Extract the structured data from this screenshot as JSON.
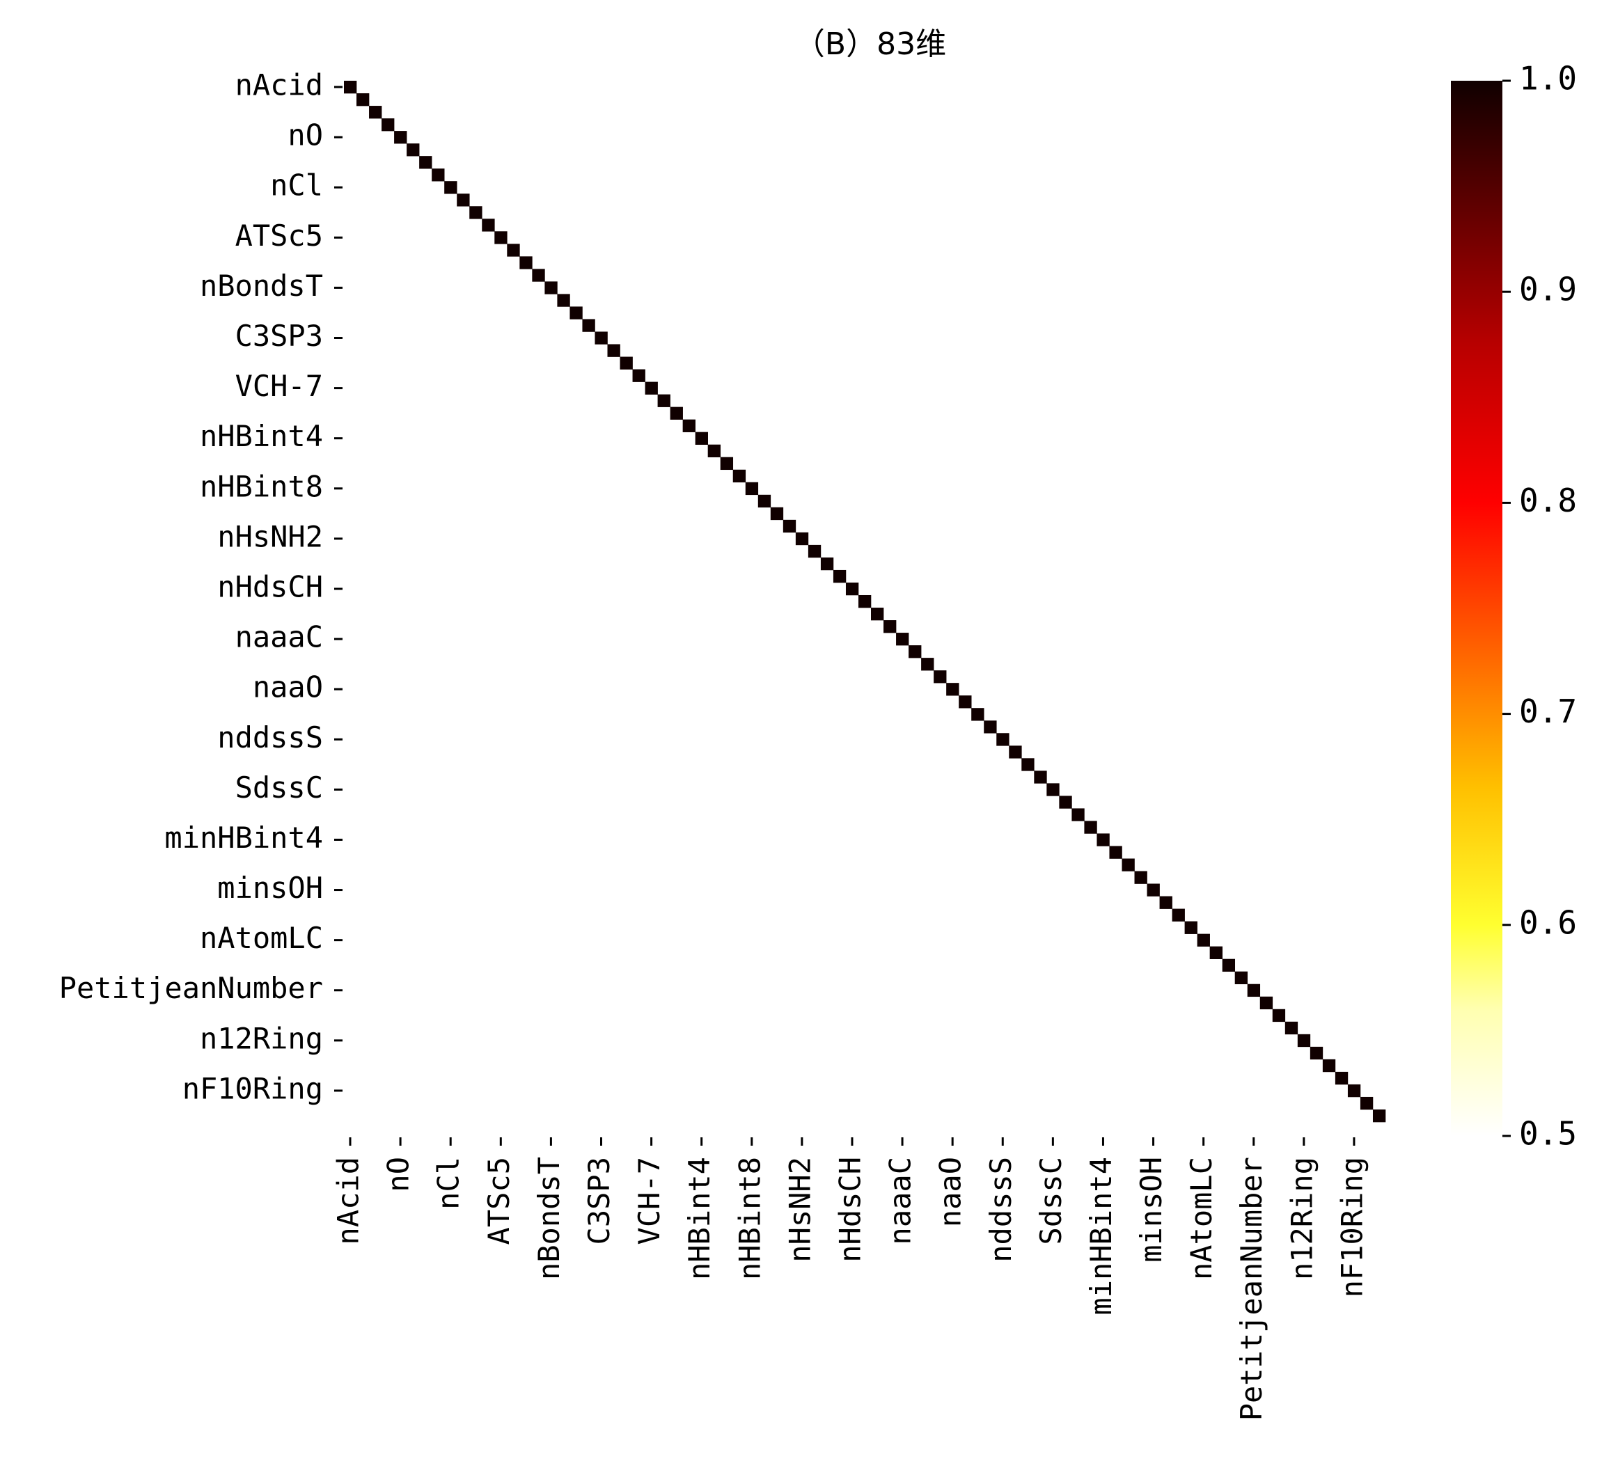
{
  "chart_data": {
    "type": "heatmap",
    "title": "（B）83维",
    "n": 83,
    "diagonal_value": 1.0,
    "off_diagonal_value": 0.5,
    "mask": "lower-triangle shown; strictly upper and strictly lower off-diagonal cells appear white (below 0.5)",
    "tick_labels": [
      "nAcid",
      "nO",
      "nCl",
      "ATSc5",
      "nBondsT",
      "C3SP3",
      "VCH-7",
      "nHBint4",
      "nHBint8",
      "nHsNH2",
      "nHdsCH",
      "naaaC",
      "naaO",
      "nddssS",
      "SdssC",
      "minHBint4",
      "minsOH",
      "nAtomLC",
      "PetitjeanNumber",
      "n12Ring",
      "nF10Ring"
    ],
    "tick_every": 4,
    "colorbar": {
      "cmap": "hot_r",
      "vmin": 0.5,
      "vmax": 1.0,
      "ticks": [
        "0.5",
        "0.6",
        "0.7",
        "0.8",
        "0.9",
        "1.0"
      ]
    },
    "colors": {
      "diagonal": "#100000",
      "colorbar_stops": [
        "#ffffff",
        "#ffff50",
        "#ffaa00",
        "#ff1500",
        "#a00000",
        "#100000"
      ]
    }
  }
}
